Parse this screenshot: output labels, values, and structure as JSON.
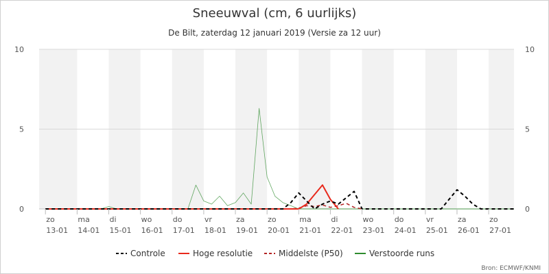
{
  "chart_data": {
    "type": "line",
    "title": "Sneeuwval (cm, 6 uurlijks)",
    "subtitle": "De Bilt, zaterdag 12 januari 2019 (Versie za 12 uur)",
    "source": "Bron: ECMWF/KNMI",
    "x_unit": "days since 2019-01-13",
    "xlim": [
      -0.2,
      14.8
    ],
    "ylim": [
      0,
      10
    ],
    "y_ticks": [
      0,
      5,
      10
    ],
    "grid": true,
    "legend_position": "bottom",
    "x_ticks": [
      {
        "day": "zo",
        "date": "13-01",
        "x": 0
      },
      {
        "day": "ma",
        "date": "14-01",
        "x": 1
      },
      {
        "day": "di",
        "date": "15-01",
        "x": 2
      },
      {
        "day": "wo",
        "date": "16-01",
        "x": 3
      },
      {
        "day": "do",
        "date": "17-01",
        "x": 4
      },
      {
        "day": "vr",
        "date": "18-01",
        "x": 5
      },
      {
        "day": "za",
        "date": "19-01",
        "x": 6
      },
      {
        "day": "zo",
        "date": "20-01",
        "x": 7
      },
      {
        "day": "ma",
        "date": "21-01",
        "x": 8
      },
      {
        "day": "di",
        "date": "22-01",
        "x": 9
      },
      {
        "day": "wo",
        "date": "23-01",
        "x": 10
      },
      {
        "day": "do",
        "date": "24-01",
        "x": 11
      },
      {
        "day": "vr",
        "date": "25-01",
        "x": 12
      },
      {
        "day": "za",
        "date": "26-01",
        "x": 13
      },
      {
        "day": "zo",
        "date": "27-01",
        "x": 14
      }
    ],
    "shaded_days": [
      {
        "from": -0.2,
        "to": 1
      },
      {
        "from": 2,
        "to": 3
      },
      {
        "from": 4,
        "to": 5
      },
      {
        "from": 6,
        "to": 7
      },
      {
        "from": 8,
        "to": 9
      },
      {
        "from": 10,
        "to": 11
      },
      {
        "from": 12,
        "to": 13
      },
      {
        "from": 14,
        "to": 14.8
      }
    ],
    "legend": [
      {
        "label": "Controle",
        "color": "#000000",
        "style": "dashed"
      },
      {
        "label": "Hoge resolutie",
        "color": "#e8291c",
        "style": "solid"
      },
      {
        "label": "Middelste (P50)",
        "color": "#b22222",
        "style": "dashed"
      },
      {
        "label": "Verstoorde runs",
        "color": "#2e8b2e",
        "style": "solid"
      }
    ],
    "series": [
      {
        "name": "Controle",
        "color": "#000000",
        "style": "dashed",
        "width": 2,
        "x": [
          0,
          6,
          7.5,
          7.75,
          8.0,
          8.25,
          8.5,
          8.75,
          9.0,
          9.25,
          9.5,
          9.75,
          10,
          12.5,
          12.75,
          13.0,
          13.25,
          13.5,
          13.75,
          14,
          14.8
        ],
        "y": [
          0,
          0,
          0,
          0.4,
          1.0,
          0.5,
          0,
          0.3,
          0.5,
          0.3,
          0.7,
          1.1,
          0,
          0,
          0.6,
          1.2,
          0.8,
          0.3,
          0,
          0,
          0
        ]
      },
      {
        "name": "Hoge resolutie",
        "color": "#e8291c",
        "style": "solid",
        "width": 2,
        "x": [
          0,
          7.5,
          7.75,
          8.0,
          8.25,
          8.5,
          8.75,
          9.0,
          9.25
        ],
        "y": [
          0,
          0,
          0,
          0,
          0.3,
          0.9,
          1.5,
          0.6,
          0
        ]
      },
      {
        "name": "Middelste (P50)",
        "color": "#b22222",
        "style": "dashed",
        "width": 1.5,
        "x": [
          0,
          7.75,
          8.0,
          8.25,
          8.5,
          8.75,
          9.0,
          9.25,
          9.5,
          9.75,
          10
        ],
        "y": [
          0,
          0,
          0.05,
          0.2,
          0.15,
          0.25,
          0.1,
          0.2,
          0.35,
          0.1,
          0
        ]
      },
      {
        "name": "Verstoorde runs",
        "color": "#2e8b2e",
        "style": "solid",
        "width": 0.8,
        "x": [
          0,
          1.75,
          2.0,
          2.25,
          14.8
        ],
        "y": [
          0,
          0,
          0.15,
          0,
          0
        ]
      },
      {
        "name": "Verstoorde runs",
        "color": "#2e8b2e",
        "style": "solid",
        "width": 0.8,
        "x": [
          0,
          4.5,
          4.75,
          5.0,
          5.25,
          5.5,
          5.75,
          6.0,
          6.25,
          6.5,
          6.75,
          7.0,
          7.25,
          7.5,
          7.75,
          8.0,
          14.8
        ],
        "y": [
          0,
          0,
          1.5,
          0.5,
          0.3,
          0.8,
          0.2,
          0.4,
          1.0,
          0.3,
          6.3,
          2.0,
          0.8,
          0.4,
          0.2,
          0,
          0
        ]
      }
    ]
  }
}
